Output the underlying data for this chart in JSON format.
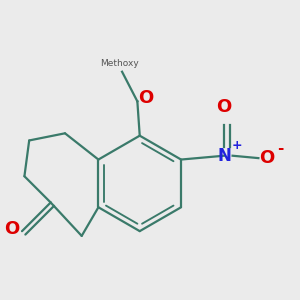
{
  "bg_color": "#ebebeb",
  "bond_color": "#3a7a6a",
  "bond_width": 1.6,
  "atom_colors": {
    "O": "#dd0000",
    "N": "#2222dd"
  },
  "fig_size": [
    3.0,
    3.0
  ],
  "dpi": 100
}
